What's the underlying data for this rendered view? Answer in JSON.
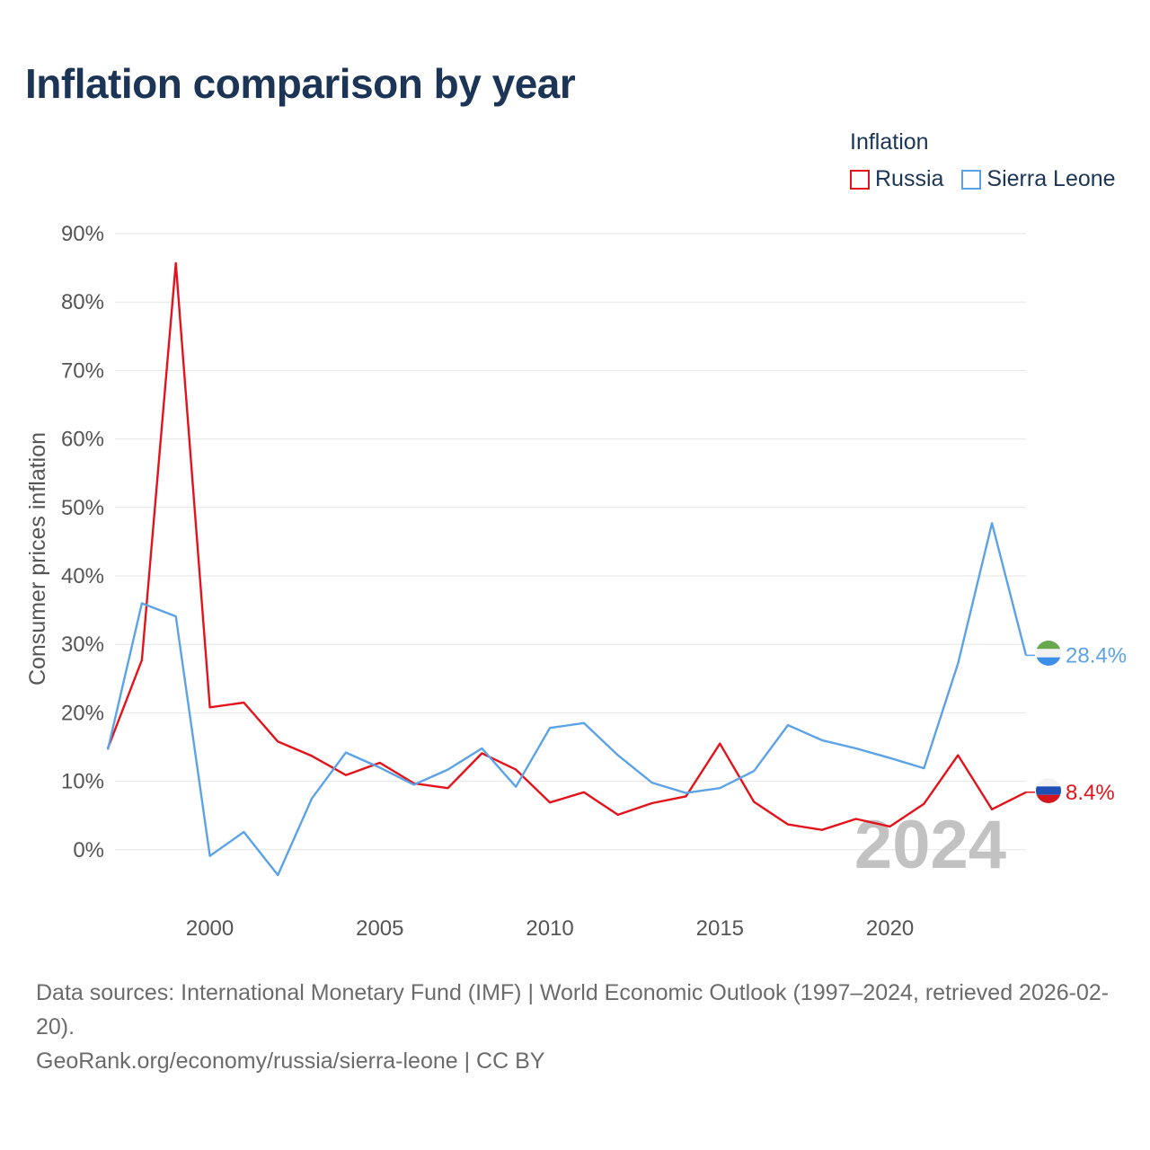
{
  "title": "Inflation comparison by year",
  "legend": {
    "title": "Inflation",
    "items": [
      {
        "label": "Russia",
        "color": "#e3121b"
      },
      {
        "label": "Sierra Leone",
        "color": "#5ba3e6"
      }
    ]
  },
  "chart_data": {
    "type": "line",
    "title": "Inflation comparison by year",
    "xlabel": "",
    "ylabel": "Consumer prices inflation",
    "ylim": [
      -3,
      90
    ],
    "xlim": [
      1997,
      2024
    ],
    "yticks": [
      0,
      10,
      20,
      30,
      40,
      50,
      60,
      70,
      80,
      90
    ],
    "ytick_labels": [
      "0%",
      "10%",
      "20%",
      "30%",
      "40%",
      "50%",
      "60%",
      "70%",
      "80%",
      "90%"
    ],
    "xticks": [
      2000,
      2005,
      2010,
      2015,
      2020
    ],
    "xtick_labels": [
      "2000",
      "2005",
      "2010",
      "2015",
      "2020"
    ],
    "grid": true,
    "year_watermark": "2024",
    "x": [
      1997,
      1998,
      1999,
      2000,
      2001,
      2002,
      2003,
      2004,
      2005,
      2006,
      2007,
      2008,
      2009,
      2010,
      2011,
      2012,
      2013,
      2014,
      2015,
      2016,
      2017,
      2018,
      2019,
      2020,
      2021,
      2022,
      2023,
      2024
    ],
    "series": [
      {
        "name": "Russia",
        "color": "#e3121b",
        "end_label": "8.4%",
        "values": [
          14.8,
          27.7,
          85.7,
          20.8,
          21.5,
          15.8,
          13.7,
          10.9,
          12.7,
          9.7,
          9.0,
          14.1,
          11.7,
          6.9,
          8.4,
          5.1,
          6.8,
          7.8,
          15.5,
          7.0,
          3.7,
          2.9,
          4.5,
          3.4,
          6.7,
          13.8,
          5.9,
          8.4
        ]
      },
      {
        "name": "Sierra Leone",
        "color": "#5ba3e6",
        "end_label": "28.4%",
        "values": [
          14.6,
          36.0,
          34.1,
          -0.9,
          2.6,
          -3.7,
          7.5,
          14.2,
          12.0,
          9.5,
          11.7,
          14.8,
          9.2,
          17.8,
          18.5,
          13.8,
          9.8,
          8.3,
          9.0,
          11.5,
          18.2,
          16.0,
          14.8,
          13.4,
          11.9,
          27.2,
          47.7,
          28.4
        ]
      }
    ]
  },
  "footer": {
    "sources": "Data sources: International Monetary Fund (IMF) | World Economic Outlook (1997–2024, retrieved 2026-02-20).",
    "credit": "GeoRank.org/economy/russia/sierra-leone | CC BY"
  }
}
